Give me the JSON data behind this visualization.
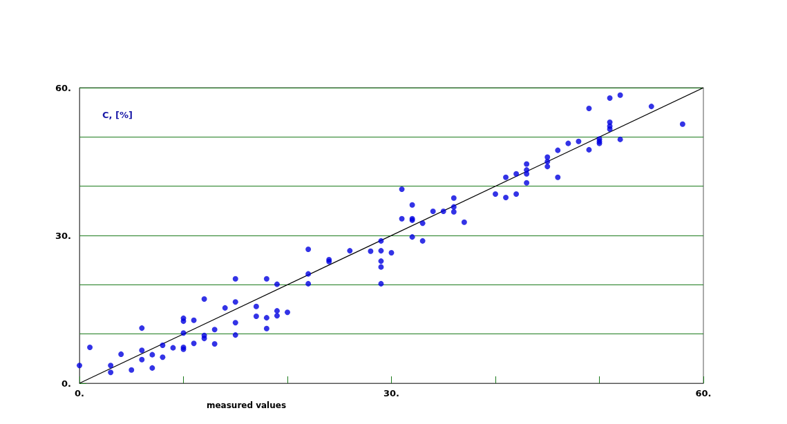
{
  "chart_data": {
    "type": "scatter",
    "xlabel": "measured values",
    "ylabel": "C, [%]",
    "xlim": [
      0,
      60
    ],
    "ylim": [
      0,
      60
    ],
    "xticks": [
      {
        "value": 0,
        "label": "0."
      },
      {
        "value": 10,
        "label": null
      },
      {
        "value": 20,
        "label": null
      },
      {
        "value": 30,
        "label": "30."
      },
      {
        "value": 40,
        "label": null
      },
      {
        "value": 50,
        "label": null
      },
      {
        "value": 60,
        "label": "60."
      }
    ],
    "yticks": [
      {
        "value": 0,
        "label": "0."
      },
      {
        "value": 10,
        "label": null
      },
      {
        "value": 20,
        "label": null
      },
      {
        "value": 30,
        "label": "30."
      },
      {
        "value": 40,
        "label": null
      },
      {
        "value": 50,
        "label": null
      },
      {
        "value": 60,
        "label": "60."
      }
    ],
    "grid": "y",
    "marker": "circle",
    "series": [
      {
        "color": "#0000e0",
        "x": [
          0,
          1,
          3,
          3,
          4,
          5,
          6,
          6,
          6,
          7,
          7,
          8,
          8,
          9,
          10,
          10,
          10,
          10,
          10,
          11,
          11,
          12,
          12,
          12,
          13,
          13,
          14,
          15,
          15,
          15,
          15,
          17,
          17,
          18,
          18,
          18,
          19,
          19,
          19,
          20,
          22,
          22,
          22,
          24,
          24,
          26,
          28,
          29,
          29,
          29,
          29,
          29,
          30,
          31,
          31,
          32,
          32,
          32,
          32,
          33,
          33,
          34,
          35,
          36,
          36,
          36,
          37,
          40,
          41,
          41,
          42,
          42,
          43,
          43,
          43,
          43,
          45,
          45,
          45,
          46,
          46,
          47,
          48,
          49,
          49,
          50,
          50,
          50,
          51,
          51,
          51,
          51,
          52,
          52,
          55,
          58
        ],
        "values": [
          3.6,
          7.3,
          3.6,
          2.2,
          5.9,
          2.7,
          11.2,
          6.7,
          4.8,
          5.8,
          3.1,
          7.7,
          5.3,
          7.2,
          13.2,
          12.6,
          10.2,
          7.3,
          6.9,
          12.8,
          8.1,
          17.1,
          9.7,
          9.1,
          10.9,
          8,
          15.3,
          21.2,
          16.5,
          12.3,
          9.8,
          15.6,
          13.6,
          21.2,
          13.3,
          11.1,
          20.1,
          14.7,
          13.7,
          14.4,
          27.2,
          22.2,
          20.2,
          25.1,
          24.7,
          26.9,
          26.8,
          28.9,
          26.9,
          24.8,
          23.6,
          20.2,
          26.5,
          39.4,
          33.4,
          36.2,
          33.4,
          33.1,
          29.7,
          32.5,
          28.9,
          34.9,
          34.9,
          37.6,
          35.8,
          34.8,
          32.7,
          38.4,
          41.8,
          37.7,
          42.5,
          38.4,
          44.5,
          43.3,
          42.5,
          40.7,
          45.9,
          45,
          44,
          47.3,
          41.8,
          48.7,
          49.1,
          55.8,
          47.4,
          49.1,
          49.6,
          48.7,
          57.9,
          53,
          52.2,
          51.6,
          58.5,
          49.5,
          56.2,
          52.6
        ]
      },
      {
        "type": "line",
        "marker": "none",
        "color": "#000000",
        "x": [
          0,
          60
        ],
        "values": [
          0,
          60
        ]
      }
    ]
  }
}
